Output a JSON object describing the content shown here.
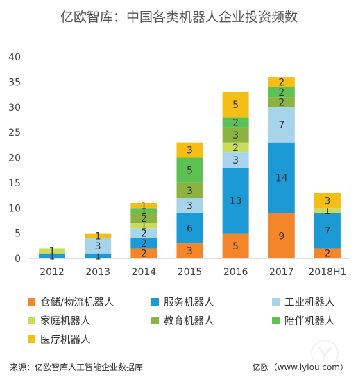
{
  "chart_data": {
    "type": "bar",
    "stacked": true,
    "title": "亿欧智库：中国各类机器人企业投资频数",
    "categories": [
      "2012",
      "2013",
      "2014",
      "2015",
      "2016",
      "2017",
      "2018H1"
    ],
    "ylim": [
      0,
      40
    ],
    "yticks": [
      0,
      5,
      10,
      15,
      20,
      25,
      30,
      35,
      40
    ],
    "grid": false,
    "legend_position": "bottom",
    "series": [
      {
        "name": "仓储/物流机器人",
        "color": "#F4862A",
        "values": [
          0,
          0,
          2,
          3,
          5,
          9,
          2
        ]
      },
      {
        "name": "服务机器人",
        "color": "#1B9AD6",
        "values": [
          1,
          1,
          2,
          6,
          13,
          14,
          7
        ]
      },
      {
        "name": "工业机器人",
        "color": "#A7D4EA",
        "values": [
          0,
          3,
          2,
          3,
          3,
          7,
          0
        ]
      },
      {
        "name": "家庭机器人",
        "color": "#C9DD5B",
        "values": [
          1,
          0,
          1,
          0,
          2,
          0,
          1
        ]
      },
      {
        "name": "教育机器人",
        "color": "#8CB23F",
        "values": [
          0,
          0,
          2,
          3,
          3,
          2,
          0
        ]
      },
      {
        "name": "陪伴机器人",
        "color": "#5DC153",
        "values": [
          0,
          0,
          1,
          5,
          2,
          2,
          0
        ]
      },
      {
        "name": "医疗机器人",
        "color": "#F5BE14",
        "values": [
          0,
          1,
          1,
          3,
          5,
          2,
          3
        ]
      }
    ]
  },
  "footer": {
    "source": "来源：亿欧智库人工智能企业数据库",
    "site": "亿欧（www.iyiou.com）"
  }
}
